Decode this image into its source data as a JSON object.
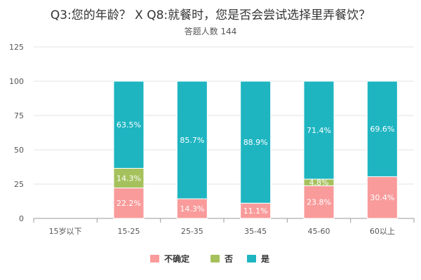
{
  "chart_data": {
    "type": "bar",
    "stacked": true,
    "title": "Q3:您的年龄？ X Q8:就餐时，您是否会尝试选择里弄餐饮？",
    "subtitle": "答题人数 144",
    "categories": [
      "15岁以下",
      "15-25",
      "25-35",
      "35-45",
      "45-60",
      "60以上"
    ],
    "series": [
      {
        "name": "不确定",
        "color": "#f99b9b",
        "values": [
          null,
          22.2,
          14.3,
          11.1,
          23.8,
          30.4
        ],
        "labels": [
          "",
          "22.2%",
          "14.3%",
          "11.1%",
          "23.8%",
          "30.4%"
        ]
      },
      {
        "name": "否",
        "color": "#a5c15c",
        "values": [
          null,
          14.3,
          0,
          0,
          4.8,
          0
        ],
        "labels": [
          "",
          "14.3%",
          "",
          "",
          "4.8%",
          ""
        ]
      },
      {
        "name": "是",
        "color": "#1eb5c1",
        "values": [
          null,
          63.5,
          85.7,
          88.9,
          71.4,
          69.6
        ],
        "labels": [
          "",
          "63.5%",
          "85.7%",
          "88.9%",
          "71.4%",
          "69.6%"
        ]
      }
    ],
    "ylim": [
      0,
      125
    ],
    "yticks": [
      0,
      25,
      50,
      75,
      100,
      125
    ],
    "grid": true,
    "legend_position": "bottom"
  }
}
